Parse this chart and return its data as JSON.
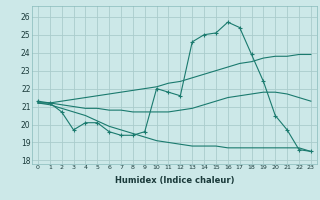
{
  "xlabel": "Humidex (Indice chaleur)",
  "bg_color": "#cce8e8",
  "grid_color": "#aacccc",
  "line_color": "#1a7a6e",
  "xlim": [
    -0.5,
    23.5
  ],
  "ylim": [
    17.8,
    26.6
  ],
  "yticks": [
    18,
    19,
    20,
    21,
    22,
    23,
    24,
    25,
    26
  ],
  "xticks": [
    0,
    1,
    2,
    3,
    4,
    5,
    6,
    7,
    8,
    9,
    10,
    11,
    12,
    13,
    14,
    15,
    16,
    17,
    18,
    19,
    20,
    21,
    22,
    23
  ],
  "series1_x": [
    0,
    1,
    2,
    3,
    4,
    5,
    6,
    7,
    8,
    9,
    10,
    11,
    12,
    13,
    14,
    15,
    16,
    17,
    18,
    19,
    20,
    21,
    22,
    23
  ],
  "series1_y": [
    21.3,
    21.2,
    20.7,
    19.7,
    20.1,
    20.1,
    19.6,
    19.4,
    19.4,
    19.6,
    22.0,
    21.8,
    21.6,
    24.6,
    25.0,
    25.1,
    25.7,
    25.4,
    23.9,
    22.4,
    20.5,
    19.7,
    18.6,
    18.5
  ],
  "series2_x": [
    0,
    1,
    2,
    3,
    4,
    5,
    6,
    7,
    8,
    9,
    10,
    11,
    12,
    13,
    14,
    15,
    16,
    17,
    18,
    19,
    20,
    21,
    22,
    23
  ],
  "series2_y": [
    21.2,
    21.2,
    21.3,
    21.4,
    21.5,
    21.6,
    21.7,
    21.8,
    21.9,
    22.0,
    22.1,
    22.3,
    22.4,
    22.6,
    22.8,
    23.0,
    23.2,
    23.4,
    23.5,
    23.7,
    23.8,
    23.8,
    23.9,
    23.9
  ],
  "series3_x": [
    0,
    1,
    2,
    3,
    4,
    5,
    6,
    7,
    8,
    9,
    10,
    11,
    12,
    13,
    14,
    15,
    16,
    17,
    18,
    19,
    20,
    21,
    22,
    23
  ],
  "series3_y": [
    21.2,
    21.2,
    21.1,
    21.0,
    20.9,
    20.9,
    20.8,
    20.8,
    20.7,
    20.7,
    20.7,
    20.7,
    20.8,
    20.9,
    21.1,
    21.3,
    21.5,
    21.6,
    21.7,
    21.8,
    21.8,
    21.7,
    21.5,
    21.3
  ],
  "series4_x": [
    0,
    1,
    2,
    3,
    4,
    5,
    6,
    7,
    8,
    9,
    10,
    11,
    12,
    13,
    14,
    15,
    16,
    17,
    18,
    19,
    20,
    21,
    22,
    23
  ],
  "series4_y": [
    21.2,
    21.1,
    20.9,
    20.7,
    20.5,
    20.2,
    19.9,
    19.7,
    19.5,
    19.3,
    19.1,
    19.0,
    18.9,
    18.8,
    18.8,
    18.8,
    18.7,
    18.7,
    18.7,
    18.7,
    18.7,
    18.7,
    18.7,
    18.5
  ]
}
